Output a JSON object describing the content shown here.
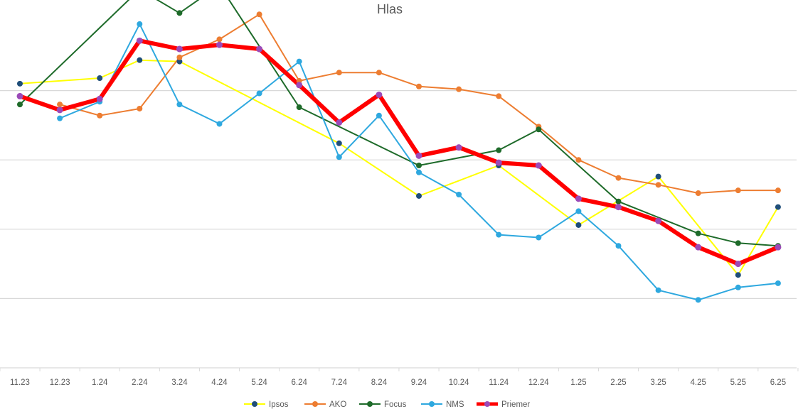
{
  "chart_data": {
    "type": "line",
    "title": "Hlas",
    "xlabel": "",
    "ylabel": "",
    "categories": [
      "11.23",
      "12.23",
      "1.24",
      "2.24",
      "3.24",
      "4.24",
      "5.24",
      "6.24",
      "7.24",
      "8.24",
      "9.24",
      "10.24",
      "11.24",
      "12.24",
      "1.25",
      "2.25",
      "3.25",
      "4.25",
      "5.25",
      "6.25"
    ],
    "ylim": [
      0,
      25
    ],
    "y_gridlines": [
      5,
      10,
      15,
      20
    ],
    "grid": true,
    "legend_position": "bottom",
    "series": [
      {
        "name": "Ipsos",
        "color": "#FFFF00",
        "marker": "#1F4E79",
        "width": 2,
        "values": [
          20.5,
          null,
          20.9,
          22.2,
          22.1,
          null,
          null,
          null,
          16.2,
          null,
          12.4,
          null,
          14.6,
          null,
          10.3,
          null,
          13.8,
          null,
          6.7,
          11.6
        ]
      },
      {
        "name": "AKO",
        "color": "#ED7D31",
        "marker": "#ED7D31",
        "width": 2,
        "values": [
          null,
          19.0,
          18.2,
          18.7,
          22.4,
          23.7,
          25.5,
          20.7,
          21.3,
          21.3,
          20.3,
          20.1,
          19.6,
          17.4,
          15.0,
          13.7,
          13.2,
          12.6,
          12.8,
          12.8
        ]
      },
      {
        "name": "Focus",
        "color": "#1E6B2A",
        "marker": "#1E6B2A",
        "width": 2,
        "values": [
          19.0,
          null,
          null,
          27.3,
          25.6,
          27.6,
          null,
          18.8,
          null,
          null,
          14.6,
          null,
          15.7,
          17.2,
          null,
          12.0,
          null,
          9.7,
          9.0,
          8.8
        ]
      },
      {
        "name": "NMS",
        "color": "#2EA8DF",
        "marker": "#2EA8DF",
        "width": 2,
        "values": [
          null,
          18.0,
          19.2,
          24.8,
          19.0,
          17.6,
          19.8,
          22.1,
          15.2,
          18.2,
          14.1,
          12.5,
          9.6,
          9.4,
          11.3,
          8.8,
          5.6,
          4.9,
          5.8,
          6.1
        ]
      },
      {
        "name": "Priemer",
        "color": "#FF0000",
        "marker": "#9B4AB8",
        "width": 6,
        "values": [
          19.6,
          18.6,
          19.4,
          23.6,
          23.0,
          23.3,
          23.0,
          20.4,
          17.7,
          19.7,
          15.3,
          15.9,
          14.8,
          14.6,
          12.2,
          11.6,
          10.6,
          8.7,
          7.5,
          8.7
        ]
      }
    ]
  }
}
